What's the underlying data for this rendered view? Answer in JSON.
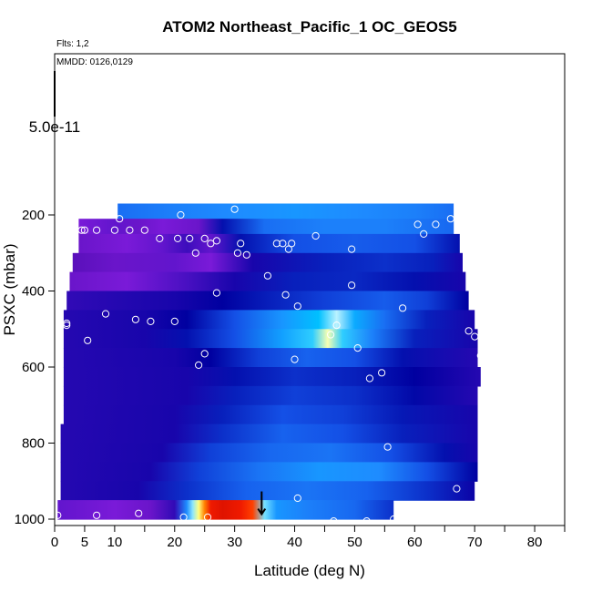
{
  "chart_data": {
    "type": "heatmap",
    "title": "ATOM2 Northeast_Pacific_1 OC_GEOS5",
    "flights_note": "Flts: 1,2",
    "date_note": "MMDD: 0126,0129",
    "xlabel": "Latitude (deg N)",
    "ylabel": "PSXC (mbar)",
    "x_ticks": [
      "0",
      "5",
      "10",
      "20",
      "30",
      "40",
      "50",
      "60",
      "70",
      "80"
    ],
    "x_tick_values": [
      0,
      5,
      10,
      20,
      30,
      40,
      50,
      60,
      70,
      80
    ],
    "xlim": [
      0,
      85
    ],
    "y_ticks": [
      "200",
      "400",
      "600",
      "800",
      "1000"
    ],
    "y_tick_values": [
      200,
      400,
      600,
      800,
      1000
    ],
    "ylim": [
      1000,
      20
    ],
    "y_reversed": true,
    "scale_label": "5.0e-11",
    "scale_value": 5e-11,
    "grid": false,
    "colormap": [
      "#2a0090",
      "#7a1ad8",
      "#0000a0",
      "#1450e6",
      "#1e8cff",
      "#00c0ff",
      "#e8ffff",
      "#ffff80",
      "#ffc000",
      "#ff2000",
      "#b00000"
    ],
    "bands": [
      {
        "p_top": 170,
        "p_bottom": 210,
        "lat_start": 10.5,
        "lat_end": 66.5,
        "stops": [
          [
            10.5,
            0.35
          ],
          [
            20,
            0.38
          ],
          [
            30,
            0.4
          ],
          [
            40,
            0.42
          ],
          [
            50,
            0.4
          ],
          [
            60,
            0.38
          ],
          [
            66.5,
            0.35
          ]
        ]
      },
      {
        "p_top": 210,
        "p_bottom": 250,
        "lat_start": 4,
        "lat_end": 66.5,
        "stops": [
          [
            4,
            0.1
          ],
          [
            10,
            0.12
          ],
          [
            14,
            0.08
          ],
          [
            18,
            0.1
          ],
          [
            24,
            0.08
          ],
          [
            28,
            0.22
          ],
          [
            35,
            0.35
          ],
          [
            45,
            0.38
          ],
          [
            55,
            0.38
          ],
          [
            66.5,
            0.34
          ]
        ]
      },
      {
        "p_top": 250,
        "p_bottom": 300,
        "lat_start": 4,
        "lat_end": 67.5,
        "stops": [
          [
            4,
            0.08
          ],
          [
            12,
            0.1
          ],
          [
            18,
            0.12
          ],
          [
            22,
            0.15
          ],
          [
            26,
            0.12
          ],
          [
            31,
            0.22
          ],
          [
            40,
            0.3
          ],
          [
            50,
            0.32
          ],
          [
            60,
            0.3
          ],
          [
            67.5,
            0.22
          ]
        ]
      },
      {
        "p_top": 300,
        "p_bottom": 350,
        "lat_start": 3,
        "lat_end": 68,
        "stops": [
          [
            3,
            0.06
          ],
          [
            10,
            0.08
          ],
          [
            20,
            0.12
          ],
          [
            26,
            0.1
          ],
          [
            33,
            0.18
          ],
          [
            45,
            0.24
          ],
          [
            55,
            0.26
          ],
          [
            63,
            0.24
          ],
          [
            68,
            0.18
          ]
        ]
      },
      {
        "p_top": 350,
        "p_bottom": 400,
        "lat_start": 2.5,
        "lat_end": 68.5,
        "stops": [
          [
            2.5,
            0.08
          ],
          [
            12,
            0.1
          ],
          [
            22,
            0.14
          ],
          [
            30,
            0.18
          ],
          [
            40,
            0.24
          ],
          [
            50,
            0.25
          ],
          [
            60,
            0.22
          ],
          [
            68.5,
            0.18
          ]
        ]
      },
      {
        "p_top": 400,
        "p_bottom": 450,
        "lat_start": 2,
        "lat_end": 69,
        "stops": [
          [
            2,
            0.16
          ],
          [
            10,
            0.17
          ],
          [
            20,
            0.18
          ],
          [
            28,
            0.2
          ],
          [
            36,
            0.24
          ],
          [
            45,
            0.28
          ],
          [
            55,
            0.32
          ],
          [
            62,
            0.28
          ],
          [
            69,
            0.2
          ]
        ]
      },
      {
        "p_top": 450,
        "p_bottom": 500,
        "lat_start": 1.5,
        "lat_end": 70,
        "stops": [
          [
            1.5,
            0.17
          ],
          [
            15,
            0.18
          ],
          [
            22,
            0.2
          ],
          [
            30,
            0.3
          ],
          [
            38,
            0.42
          ],
          [
            44,
            0.5
          ],
          [
            47,
            0.58
          ],
          [
            50,
            0.46
          ],
          [
            55,
            0.35
          ],
          [
            62,
            0.24
          ],
          [
            70,
            0.18
          ]
        ]
      },
      {
        "p_top": 500,
        "p_bottom": 550,
        "lat_start": 1.5,
        "lat_end": 70.5,
        "stops": [
          [
            1.5,
            0.17
          ],
          [
            15,
            0.18
          ],
          [
            22,
            0.22
          ],
          [
            30,
            0.3
          ],
          [
            38,
            0.44
          ],
          [
            43,
            0.52
          ],
          [
            45.5,
            0.66
          ],
          [
            48,
            0.52
          ],
          [
            53,
            0.38
          ],
          [
            60,
            0.24
          ],
          [
            70.5,
            0.18
          ]
        ]
      },
      {
        "p_top": 550,
        "p_bottom": 600,
        "lat_start": 1.5,
        "lat_end": 70.5,
        "stops": [
          [
            1.5,
            0.17
          ],
          [
            20,
            0.18
          ],
          [
            26,
            0.2
          ],
          [
            34,
            0.28
          ],
          [
            42,
            0.33
          ],
          [
            50,
            0.3
          ],
          [
            58,
            0.22
          ],
          [
            70.5,
            0.17
          ]
        ]
      },
      {
        "p_top": 600,
        "p_bottom": 650,
        "lat_start": 1.5,
        "lat_end": 71,
        "stops": [
          [
            1.5,
            0.17
          ],
          [
            22,
            0.18
          ],
          [
            30,
            0.22
          ],
          [
            40,
            0.26
          ],
          [
            50,
            0.24
          ],
          [
            60,
            0.2
          ],
          [
            71,
            0.17
          ]
        ]
      },
      {
        "p_top": 650,
        "p_bottom": 700,
        "lat_start": 1.5,
        "lat_end": 70.5,
        "stops": [
          [
            1.5,
            0.17
          ],
          [
            22,
            0.18
          ],
          [
            30,
            0.24
          ],
          [
            40,
            0.28
          ],
          [
            50,
            0.26
          ],
          [
            60,
            0.21
          ],
          [
            70.5,
            0.17
          ]
        ]
      },
      {
        "p_top": 700,
        "p_bottom": 750,
        "lat_start": 1.5,
        "lat_end": 70.5,
        "stops": [
          [
            1.5,
            0.17
          ],
          [
            20,
            0.18
          ],
          [
            28,
            0.24
          ],
          [
            38,
            0.3
          ],
          [
            48,
            0.28
          ],
          [
            58,
            0.23
          ],
          [
            70.5,
            0.18
          ]
        ]
      },
      {
        "p_top": 750,
        "p_bottom": 800,
        "lat_start": 1,
        "lat_end": 70.5,
        "stops": [
          [
            1,
            0.17
          ],
          [
            20,
            0.18
          ],
          [
            28,
            0.26
          ],
          [
            38,
            0.33
          ],
          [
            48,
            0.3
          ],
          [
            58,
            0.24
          ],
          [
            70.5,
            0.18
          ]
        ]
      },
      {
        "p_top": 800,
        "p_bottom": 850,
        "lat_start": 1,
        "lat_end": 70.5,
        "stops": [
          [
            1,
            0.17
          ],
          [
            18,
            0.18
          ],
          [
            26,
            0.28
          ],
          [
            36,
            0.34
          ],
          [
            46,
            0.36
          ],
          [
            56,
            0.3
          ],
          [
            65,
            0.22
          ],
          [
            70.5,
            0.18
          ]
        ]
      },
      {
        "p_top": 850,
        "p_bottom": 900,
        "lat_start": 1,
        "lat_end": 70.5,
        "stops": [
          [
            1,
            0.17
          ],
          [
            16,
            0.18
          ],
          [
            24,
            0.28
          ],
          [
            34,
            0.36
          ],
          [
            44,
            0.42
          ],
          [
            54,
            0.4
          ],
          [
            62,
            0.3
          ],
          [
            70.5,
            0.2
          ]
        ]
      },
      {
        "p_top": 900,
        "p_bottom": 950,
        "lat_start": 1,
        "lat_end": 70,
        "stops": [
          [
            1,
            0.17
          ],
          [
            14,
            0.18
          ],
          [
            22,
            0.26
          ],
          [
            32,
            0.33
          ],
          [
            42,
            0.36
          ],
          [
            52,
            0.33
          ],
          [
            62,
            0.26
          ],
          [
            70,
            0.19
          ]
        ]
      },
      {
        "p_top": 950,
        "p_bottom": 1000,
        "lat_start": 0.5,
        "lat_end": 56.5,
        "stops": [
          [
            0.5,
            0.12
          ],
          [
            10,
            0.1
          ],
          [
            16,
            0.08
          ],
          [
            20,
            0.16
          ],
          [
            22,
            0.4
          ],
          [
            23,
            0.56
          ],
          [
            24,
            0.7
          ],
          [
            25,
            0.84
          ],
          [
            26,
            0.92
          ],
          [
            28,
            0.94
          ],
          [
            31,
            0.92
          ],
          [
            33,
            0.88
          ],
          [
            35,
            0.55
          ],
          [
            37,
            0.42
          ],
          [
            42,
            0.38
          ],
          [
            50,
            0.34
          ],
          [
            56.5,
            0.26
          ]
        ]
      }
    ],
    "points": [
      [
        10.8,
        210
      ],
      [
        21,
        200
      ],
      [
        30,
        185
      ],
      [
        66,
        210
      ],
      [
        60.5,
        225
      ],
      [
        63.5,
        225
      ],
      [
        61.5,
        250
      ],
      [
        4.5,
        240
      ],
      [
        5,
        240
      ],
      [
        7,
        240
      ],
      [
        10,
        240
      ],
      [
        12.5,
        240
      ],
      [
        15,
        240
      ],
      [
        17.5,
        262
      ],
      [
        20.5,
        262
      ],
      [
        22.5,
        262
      ],
      [
        25,
        262
      ],
      [
        27,
        268
      ],
      [
        26,
        275
      ],
      [
        31,
        275
      ],
      [
        30.5,
        300
      ],
      [
        32,
        305
      ],
      [
        23.5,
        300
      ],
      [
        37,
        275
      ],
      [
        38,
        275
      ],
      [
        39.5,
        275
      ],
      [
        39,
        290
      ],
      [
        43.5,
        255
      ],
      [
        49.5,
        290
      ],
      [
        35.5,
        360
      ],
      [
        49.5,
        385
      ],
      [
        38.5,
        410
      ],
      [
        40.5,
        440
      ],
      [
        58,
        445
      ],
      [
        27,
        405
      ],
      [
        8.5,
        460
      ],
      [
        13.5,
        475
      ],
      [
        16,
        480
      ],
      [
        20,
        480
      ],
      [
        2,
        485
      ],
      [
        2,
        490
      ],
      [
        47,
        490
      ],
      [
        46,
        515
      ],
      [
        5.5,
        530
      ],
      [
        69,
        505
      ],
      [
        70,
        520
      ],
      [
        50.5,
        550
      ],
      [
        25,
        565
      ],
      [
        71,
        570
      ],
      [
        40,
        580
      ],
      [
        24,
        595
      ],
      [
        54.5,
        615
      ],
      [
        52.5,
        630
      ],
      [
        55.5,
        810
      ],
      [
        40.5,
        945
      ],
      [
        67,
        920
      ],
      [
        0.5,
        990
      ],
      [
        7,
        990
      ],
      [
        14,
        985
      ],
      [
        21.5,
        995
      ],
      [
        25.5,
        995
      ],
      [
        46.5,
        1005
      ],
      [
        52,
        1005
      ],
      [
        56.5,
        1000
      ]
    ],
    "marker": {
      "lat": 34.5,
      "p": 975
    }
  }
}
